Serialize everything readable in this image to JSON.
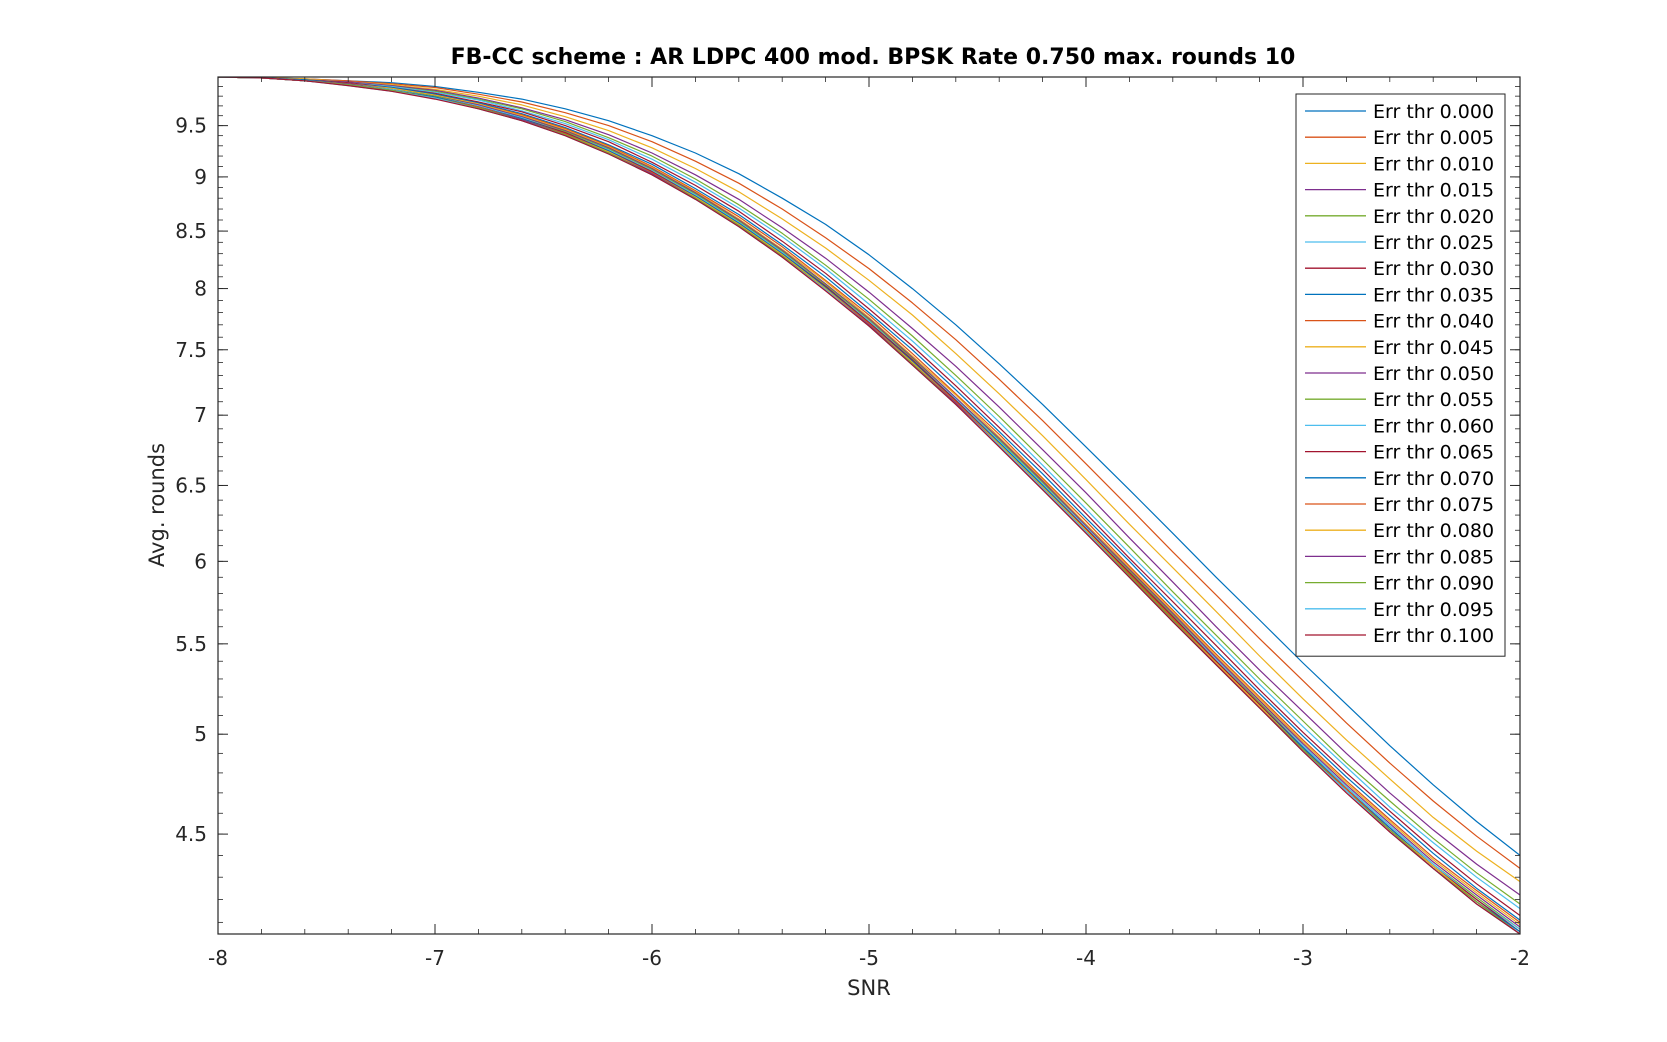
{
  "chart_data": {
    "type": "line",
    "title": "FB-CC scheme : AR LDPC 400 mod. BPSK Rate 0.750 max. rounds 10",
    "xlabel": "SNR",
    "ylabel": "Avg. rounds",
    "xlim": [
      -8,
      -2
    ],
    "ylim": [
      4.05,
      10
    ],
    "y_scale": "log",
    "grid": false,
    "legend_position": "top-right",
    "x_ticks": [
      -8,
      -7,
      -6,
      -5,
      -4,
      -3,
      -2
    ],
    "x_tick_labels": [
      "-8",
      "-7",
      "-6",
      "-5",
      "-4",
      "-3",
      "-2"
    ],
    "y_ticks": [
      4.5,
      5,
      5.5,
      6,
      6.5,
      7,
      7.5,
      8,
      8.5,
      9,
      9.5
    ],
    "y_tick_labels": [
      "4.5",
      "5",
      "5.5",
      "6",
      "6.5",
      "7",
      "7.5",
      "8",
      "8.5",
      "9",
      "9.5"
    ],
    "x": [
      -8.0,
      -7.8,
      -7.6,
      -7.4,
      -7.2,
      -7.0,
      -6.8,
      -6.6,
      -6.4,
      -6.2,
      -6.0,
      -5.8,
      -5.6,
      -5.4,
      -5.2,
      -5.0,
      -4.8,
      -4.6,
      -4.4,
      -4.2,
      -4.0,
      -3.8,
      -3.6,
      -3.4,
      -3.2,
      -3.0,
      -2.8,
      -2.6,
      -2.4,
      -2.2,
      -2.0
    ],
    "series": [
      {
        "name": "Err thr 0.000",
        "color": "#0072BD",
        "values": [
          10.0,
          9.99,
          9.98,
          9.96,
          9.94,
          9.9,
          9.84,
          9.77,
          9.67,
          9.55,
          9.4,
          9.23,
          9.03,
          8.8,
          8.56,
          8.29,
          8.0,
          7.7,
          7.39,
          7.08,
          6.77,
          6.47,
          6.18,
          5.9,
          5.64,
          5.39,
          5.16,
          4.94,
          4.74,
          4.56,
          4.4
        ]
      },
      {
        "name": "Err thr 0.005",
        "color": "#D95319",
        "values": [
          10.0,
          9.99,
          9.98,
          9.96,
          9.93,
          9.89,
          9.82,
          9.74,
          9.63,
          9.5,
          9.34,
          9.15,
          8.94,
          8.7,
          8.44,
          8.17,
          7.88,
          7.58,
          7.27,
          6.96,
          6.65,
          6.35,
          6.06,
          5.79,
          5.53,
          5.29,
          5.06,
          4.85,
          4.66,
          4.49,
          4.34
        ]
      },
      {
        "name": "Err thr 0.010",
        "color": "#EDB120",
        "values": [
          10.0,
          9.99,
          9.98,
          9.95,
          9.92,
          9.87,
          9.8,
          9.71,
          9.59,
          9.45,
          9.28,
          9.08,
          8.86,
          8.61,
          8.35,
          8.07,
          7.78,
          7.47,
          7.16,
          6.85,
          6.54,
          6.24,
          5.96,
          5.69,
          5.43,
          5.19,
          4.97,
          4.77,
          4.58,
          4.42,
          4.28
        ]
      },
      {
        "name": "Err thr 0.015",
        "color": "#7E2F8E",
        "values": [
          10.0,
          9.99,
          9.97,
          9.95,
          9.91,
          9.86,
          9.78,
          9.68,
          9.56,
          9.41,
          9.23,
          9.02,
          8.79,
          8.53,
          8.26,
          7.97,
          7.67,
          7.37,
          7.06,
          6.75,
          6.45,
          6.15,
          5.87,
          5.6,
          5.35,
          5.12,
          4.9,
          4.7,
          4.52,
          4.36,
          4.22
        ]
      },
      {
        "name": "Err thr 0.020",
        "color": "#77AC30",
        "values": [
          10.0,
          9.99,
          9.97,
          9.94,
          9.9,
          9.85,
          9.77,
          9.67,
          9.54,
          9.38,
          9.2,
          8.98,
          8.74,
          8.48,
          8.2,
          7.91,
          7.61,
          7.3,
          6.99,
          6.68,
          6.38,
          6.09,
          5.81,
          5.55,
          5.3,
          5.07,
          4.85,
          4.66,
          4.48,
          4.32,
          4.18
        ]
      },
      {
        "name": "Err thr 0.025",
        "color": "#4DBEEE",
        "values": [
          10.0,
          9.99,
          9.97,
          9.94,
          9.9,
          9.84,
          9.76,
          9.65,
          9.52,
          9.36,
          9.17,
          8.95,
          8.71,
          8.45,
          8.17,
          7.87,
          7.57,
          7.26,
          6.95,
          6.64,
          6.34,
          6.05,
          5.78,
          5.52,
          5.27,
          5.04,
          4.83,
          4.63,
          4.46,
          4.3,
          4.16
        ]
      },
      {
        "name": "Err thr 0.030",
        "color": "#A2142F",
        "values": [
          10.0,
          9.99,
          9.97,
          9.94,
          9.89,
          9.83,
          9.74,
          9.64,
          9.5,
          9.34,
          9.14,
          8.92,
          8.68,
          8.41,
          8.13,
          7.83,
          7.53,
          7.22,
          6.91,
          6.61,
          6.31,
          6.02,
          5.75,
          5.49,
          5.24,
          5.01,
          4.8,
          4.61,
          4.43,
          4.27,
          4.13
        ]
      },
      {
        "name": "Err thr 0.035",
        "color": "#0072BD",
        "values": [
          10.0,
          9.99,
          9.97,
          9.93,
          9.89,
          9.82,
          9.73,
          9.62,
          9.48,
          9.31,
          9.12,
          8.89,
          8.65,
          8.38,
          8.1,
          7.8,
          7.5,
          7.19,
          6.88,
          6.58,
          6.28,
          6.0,
          5.72,
          5.46,
          5.22,
          4.99,
          4.78,
          4.59,
          4.41,
          4.25,
          4.11
        ]
      },
      {
        "name": "Err thr 0.040",
        "color": "#D95319",
        "values": [
          10.0,
          9.99,
          9.96,
          9.93,
          9.88,
          9.81,
          9.72,
          9.61,
          9.47,
          9.3,
          9.1,
          8.87,
          8.63,
          8.36,
          8.07,
          7.78,
          7.47,
          7.16,
          6.86,
          6.55,
          6.26,
          5.97,
          5.7,
          5.44,
          5.2,
          4.97,
          4.76,
          4.57,
          4.39,
          4.24,
          4.1
        ]
      },
      {
        "name": "Err thr 0.045",
        "color": "#EDB120",
        "values": [
          10.0,
          9.99,
          9.96,
          9.93,
          9.88,
          9.81,
          9.72,
          9.6,
          9.46,
          9.29,
          9.09,
          8.86,
          8.61,
          8.34,
          8.06,
          7.76,
          7.45,
          7.15,
          6.84,
          6.54,
          6.24,
          5.96,
          5.69,
          5.43,
          5.19,
          4.96,
          4.75,
          4.56,
          4.38,
          4.23,
          4.09
        ]
      },
      {
        "name": "Err thr 0.050",
        "color": "#7E2F8E",
        "values": [
          10.0,
          9.99,
          9.96,
          9.93,
          9.87,
          9.8,
          9.71,
          9.59,
          9.45,
          9.28,
          9.08,
          8.85,
          8.6,
          8.33,
          8.04,
          7.75,
          7.44,
          7.13,
          6.83,
          6.53,
          6.23,
          5.95,
          5.68,
          5.42,
          5.18,
          4.95,
          4.74,
          4.55,
          4.37,
          4.22,
          4.08
        ]
      },
      {
        "name": "Err thr 0.055",
        "color": "#77AC30",
        "values": [
          10.0,
          9.99,
          9.96,
          9.92,
          9.87,
          9.8,
          9.7,
          9.58,
          9.44,
          9.27,
          9.07,
          8.84,
          8.59,
          8.32,
          8.03,
          7.74,
          7.43,
          7.12,
          6.82,
          6.52,
          6.22,
          5.94,
          5.67,
          5.41,
          5.17,
          4.94,
          4.73,
          4.54,
          4.36,
          4.21,
          4.07
        ]
      },
      {
        "name": "Err thr 0.060",
        "color": "#4DBEEE",
        "values": [
          10.0,
          9.99,
          9.96,
          9.92,
          9.87,
          9.79,
          9.7,
          9.58,
          9.43,
          9.26,
          9.06,
          8.83,
          8.58,
          8.31,
          8.02,
          7.73,
          7.42,
          7.12,
          6.81,
          6.51,
          6.22,
          5.93,
          5.66,
          5.41,
          5.16,
          4.94,
          4.73,
          4.54,
          4.36,
          4.2,
          4.07
        ]
      },
      {
        "name": "Err thr 0.065",
        "color": "#A2142F",
        "values": [
          10.0,
          9.99,
          9.96,
          9.92,
          9.86,
          9.79,
          9.69,
          9.57,
          9.43,
          9.25,
          9.05,
          8.82,
          8.57,
          8.3,
          8.02,
          7.72,
          7.42,
          7.11,
          6.8,
          6.5,
          6.21,
          5.93,
          5.66,
          5.4,
          5.16,
          4.93,
          4.72,
          4.53,
          4.35,
          4.2,
          4.06
        ]
      },
      {
        "name": "Err thr 0.070",
        "color": "#0072BD",
        "values": [
          10.0,
          9.99,
          9.96,
          9.92,
          9.86,
          9.79,
          9.69,
          9.57,
          9.42,
          9.25,
          9.04,
          8.82,
          8.57,
          8.3,
          8.01,
          7.71,
          7.41,
          7.1,
          6.8,
          6.5,
          6.2,
          5.92,
          5.65,
          5.39,
          5.15,
          4.93,
          4.72,
          4.53,
          4.35,
          4.19,
          4.06
        ]
      },
      {
        "name": "Err thr 0.075",
        "color": "#D95319",
        "values": [
          10.0,
          9.99,
          9.96,
          9.92,
          9.86,
          9.78,
          9.69,
          9.56,
          9.42,
          9.24,
          9.04,
          8.81,
          8.56,
          8.29,
          8.0,
          7.71,
          7.4,
          7.1,
          6.79,
          6.49,
          6.2,
          5.92,
          5.65,
          5.39,
          5.15,
          4.92,
          4.72,
          4.52,
          4.35,
          4.19,
          4.05
        ]
      },
      {
        "name": "Err thr 0.080",
        "color": "#EDB120",
        "values": [
          10.0,
          9.99,
          9.96,
          9.92,
          9.86,
          9.78,
          9.68,
          9.56,
          9.41,
          9.24,
          9.03,
          8.81,
          8.56,
          8.29,
          8.0,
          7.7,
          7.4,
          7.09,
          6.79,
          6.49,
          6.2,
          5.91,
          5.64,
          5.39,
          5.15,
          4.92,
          4.71,
          4.52,
          4.35,
          4.19,
          4.05
        ]
      },
      {
        "name": "Err thr 0.085",
        "color": "#7E2F8E",
        "values": [
          10.0,
          9.99,
          9.96,
          9.92,
          9.86,
          9.78,
          9.68,
          9.56,
          9.41,
          9.23,
          9.03,
          8.8,
          8.55,
          8.28,
          7.99,
          7.7,
          7.39,
          7.09,
          6.78,
          6.48,
          6.19,
          5.91,
          5.64,
          5.38,
          5.14,
          4.92,
          4.71,
          4.52,
          4.34,
          4.19,
          4.05
        ]
      },
      {
        "name": "Err thr 0.090",
        "color": "#77AC30",
        "values": [
          10.0,
          9.99,
          9.96,
          9.92,
          9.86,
          9.78,
          9.68,
          9.55,
          9.41,
          9.23,
          9.02,
          8.8,
          8.55,
          8.28,
          7.99,
          7.69,
          7.39,
          7.08,
          6.78,
          6.48,
          6.19,
          5.91,
          5.64,
          5.38,
          5.14,
          4.92,
          4.71,
          4.52,
          4.34,
          4.19,
          4.05
        ]
      },
      {
        "name": "Err thr 0.095",
        "color": "#4DBEEE",
        "values": [
          10.0,
          9.99,
          9.96,
          9.91,
          9.85,
          9.78,
          9.67,
          9.55,
          9.4,
          9.22,
          9.02,
          8.79,
          8.54,
          8.27,
          7.99,
          7.69,
          7.38,
          7.08,
          6.78,
          6.48,
          6.19,
          5.9,
          5.63,
          5.38,
          5.14,
          4.91,
          4.71,
          4.51,
          4.34,
          4.18,
          4.05
        ]
      },
      {
        "name": "Err thr 0.100",
        "color": "#A2142F",
        "values": [
          10.0,
          9.99,
          9.96,
          9.91,
          9.85,
          9.77,
          9.67,
          9.55,
          9.4,
          9.22,
          9.02,
          8.79,
          8.54,
          8.27,
          7.98,
          7.69,
          7.38,
          7.08,
          6.77,
          6.47,
          6.18,
          5.9,
          5.63,
          5.38,
          5.14,
          4.91,
          4.7,
          4.51,
          4.34,
          4.18,
          4.05
        ]
      }
    ]
  }
}
